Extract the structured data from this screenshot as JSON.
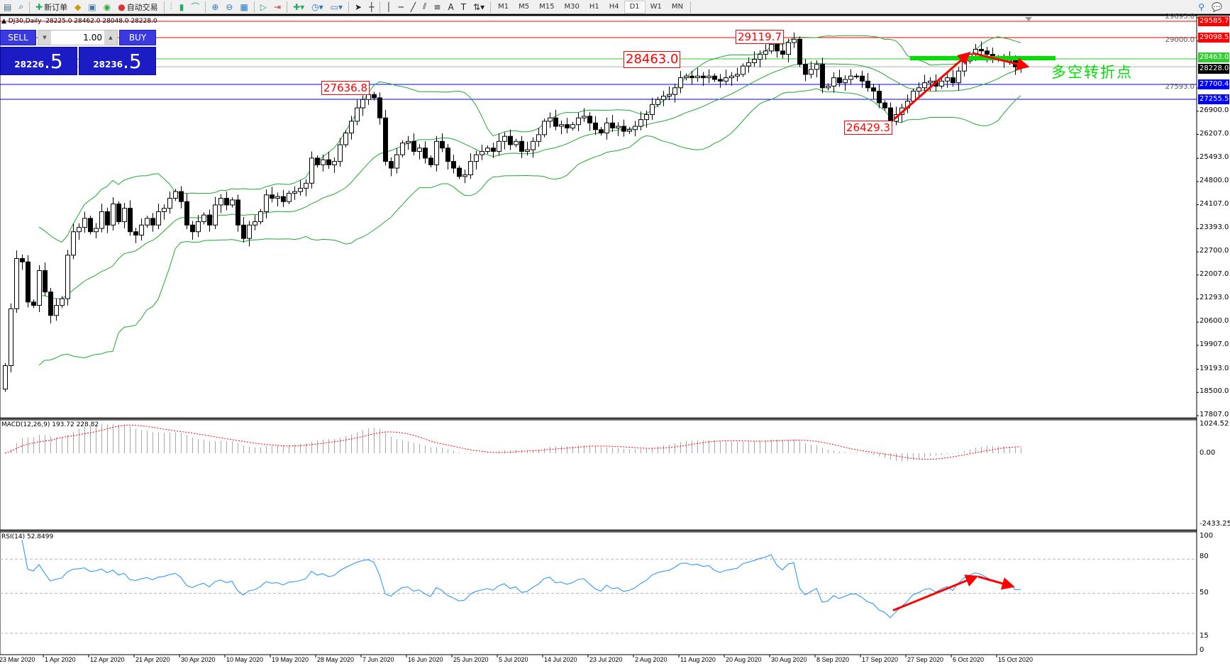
{
  "toolbar": {
    "new_order_label": "新订单",
    "auto_trading_label": "自动交易",
    "timeframes": [
      "M1",
      "M5",
      "M15",
      "M30",
      "H1",
      "H4",
      "D1",
      "W1",
      "MN"
    ],
    "active_timeframe": "D1"
  },
  "chart_header": {
    "symbol": "DJ30,Daily",
    "ohlc": "28225.0 28462.0 28048.0 28228.0"
  },
  "one_click_trading": {
    "sell_label": "SELL",
    "buy_label": "BUY",
    "lot": "1.00",
    "sell_price_main": "28226",
    "sell_price_big": ".5",
    "buy_price_main": "28236",
    "buy_price_big": ".5"
  },
  "annotation_text": "多空转折点",
  "price_tags": [
    "29119.7",
    "28463.0",
    "27636.8",
    "26429.3"
  ],
  "levels": [
    {
      "value": "29585.7",
      "color": "#ff0000"
    },
    {
      "value": "29098.5",
      "color": "#ff0000"
    },
    {
      "value": "28463.0",
      "color": "#32cd32"
    },
    {
      "value": "28228.0",
      "color": "#000000"
    },
    {
      "value": "27700.4",
      "color": "#0000ff"
    },
    {
      "value": "27255.5",
      "color": "#0000ff"
    }
  ],
  "price_axis": [
    "29693.0",
    "29000.0",
    "27593.0",
    "26900.0",
    "26207.0",
    "25493.0",
    "24800.0",
    "24107.0",
    "23393.0",
    "22700.0",
    "22007.0",
    "21293.0",
    "20600.0",
    "19907.0",
    "19193.0",
    "18500.0",
    "17807.0"
  ],
  "macd": {
    "label": "MACD(12,26,9) 193.72 228.82",
    "axis": [
      "1024.52",
      "0.00",
      "-2433.25"
    ]
  },
  "rsi": {
    "label": "RSI(14) 52.8499",
    "axis": [
      "100",
      "80",
      "50",
      "15",
      "0"
    ]
  },
  "date_axis": [
    "23 Mar 2020",
    "1 Apr 2020",
    "12 Apr 2020",
    "21 Apr 2020",
    "30 Apr 2020",
    "10 May 2020",
    "19 May 2020",
    "28 May 2020",
    "7 Jun 2020",
    "16 Jun 2020",
    "25 Jun 2020",
    "5 Jul 2020",
    "14 Jul 2020",
    "23 Jul 2020",
    "2 Aug 2020",
    "11 Aug 2020",
    "20 Aug 2020",
    "30 Aug 2020",
    "8 Sep 2020",
    "17 Sep 2020",
    "27 Sep 2020",
    "6 Oct 2020",
    "15 Oct 2020"
  ],
  "colors": {
    "bull": "#ffffff",
    "bear": "#000000",
    "bands": "#22a833",
    "macd_signal": "#ff0000",
    "macd_hist": "#a8a8a8",
    "rsi": "#1e90ff",
    "arrows": "#ff0000",
    "pivot_bar": "#00e000"
  },
  "chart_data": {
    "type": "candlestick",
    "symbol": "DJ30",
    "timeframe": "Daily",
    "ylim": [
      17807,
      29693
    ],
    "first_open": 18600,
    "closes": [
      19300,
      21000,
      22500,
      22400,
      21200,
      21100,
      22140,
      21500,
      20800,
      21100,
      21300,
      22600,
      23300,
      23430,
      23700,
      23300,
      23400,
      23900,
      23500,
      24130,
      23600,
      24000,
      23300,
      23200,
      23500,
      23700,
      23500,
      23900,
      24000,
      24300,
      24500,
      24200,
      23500,
      23300,
      23600,
      23800,
      23500,
      24100,
      24300,
      24100,
      24250,
      23500,
      23100,
      23500,
      23600,
      23900,
      24400,
      24300,
      24350,
      24200,
      24450,
      24500,
      24600,
      24750,
      25500,
      25300,
      25450,
      25300,
      25400,
      25900,
      26250,
      26600,
      27000,
      27250,
      27400,
      27300,
      26700,
      25400,
      25200,
      25600,
      25950,
      26000,
      25700,
      25800,
      25500,
      25300,
      26000,
      25800,
      25400,
      25200,
      24950,
      25000,
      25400,
      25600,
      25700,
      25800,
      25700,
      26000,
      26150,
      25900,
      26000,
      25700,
      25750,
      26000,
      26200,
      26600,
      26700,
      26450,
      26500,
      26400,
      26500,
      26700,
      26750,
      26550,
      26350,
      26250,
      26550,
      26400,
      26450,
      26300,
      26350,
      26450,
      26650,
      26800,
      27100,
      27250,
      27350,
      27400,
      27600,
      27900,
      27950,
      27900,
      27950,
      27900,
      27950,
      27850,
      27800,
      27900,
      27950,
      28000,
      28250,
      28350,
      28450,
      28600,
      28700,
      28900,
      28700,
      28600,
      28950,
      29050,
      28300,
      28000,
      28150,
      28300,
      27600,
      27650,
      27900,
      27750,
      27850,
      27950,
      27950,
      27800,
      27600,
      27500,
      27150,
      27000,
      26600,
      26800,
      27000,
      27200,
      27500,
      27600,
      27750,
      27800,
      27650,
      27800,
      27900,
      27750,
      28100,
      28400,
      28600,
      28750,
      28700,
      28600,
      28500,
      28450,
      28400,
      28450,
      28225,
      28228
    ],
    "last_bar": {
      "open": 28225.0,
      "high": 28462.0,
      "low": 28048.0,
      "close": 28228.0
    },
    "indicators": [
      "Bollinger Bands(20,2)",
      "MACD(12,26,9)",
      "RSI(14)"
    ],
    "rsi_levels": [
      80,
      50,
      15
    ]
  }
}
